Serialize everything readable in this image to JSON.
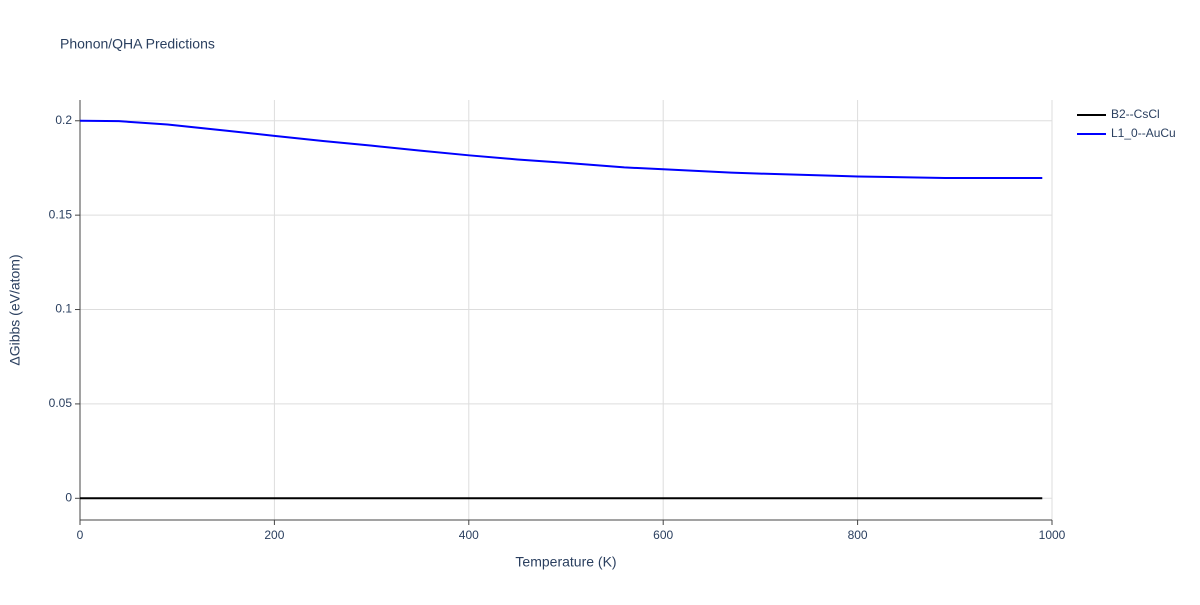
{
  "chart_data": {
    "type": "line",
    "title": "Phonon/QHA Predictions",
    "x_label": "Temperature (K)",
    "y_label": "ΔGibbs (eV/atom)",
    "x": [
      0,
      40,
      90,
      150,
      200,
      250,
      300,
      350,
      400,
      450,
      500,
      560,
      600,
      670,
      700,
      780,
      800,
      890,
      990
    ],
    "series": [
      {
        "name": "B2--CsCl",
        "color": "#000000",
        "values": [
          0,
          0,
          0,
          0,
          0,
          0,
          0,
          0,
          0,
          0,
          0,
          0,
          0,
          0,
          0,
          0,
          0,
          0,
          0
        ]
      },
      {
        "name": "L1_0--AuCu",
        "color": "#0000ff",
        "values": [
          0.2,
          0.1998,
          0.198,
          0.1948,
          0.192,
          0.1893,
          0.1868,
          0.1842,
          0.1817,
          0.1795,
          0.1777,
          0.1753,
          0.1743,
          0.1725,
          0.172,
          0.1708,
          0.1705,
          0.1697,
          0.1697
        ]
      }
    ],
    "xlim": [
      0,
      1000
    ],
    "xticks": [
      0,
      200,
      400,
      600,
      800,
      1000
    ],
    "ylim": [
      -0.0115,
      0.211
    ],
    "yticks": [
      0,
      0.05,
      0.1,
      0.15,
      0.2
    ],
    "grid": true,
    "legend": "right"
  }
}
